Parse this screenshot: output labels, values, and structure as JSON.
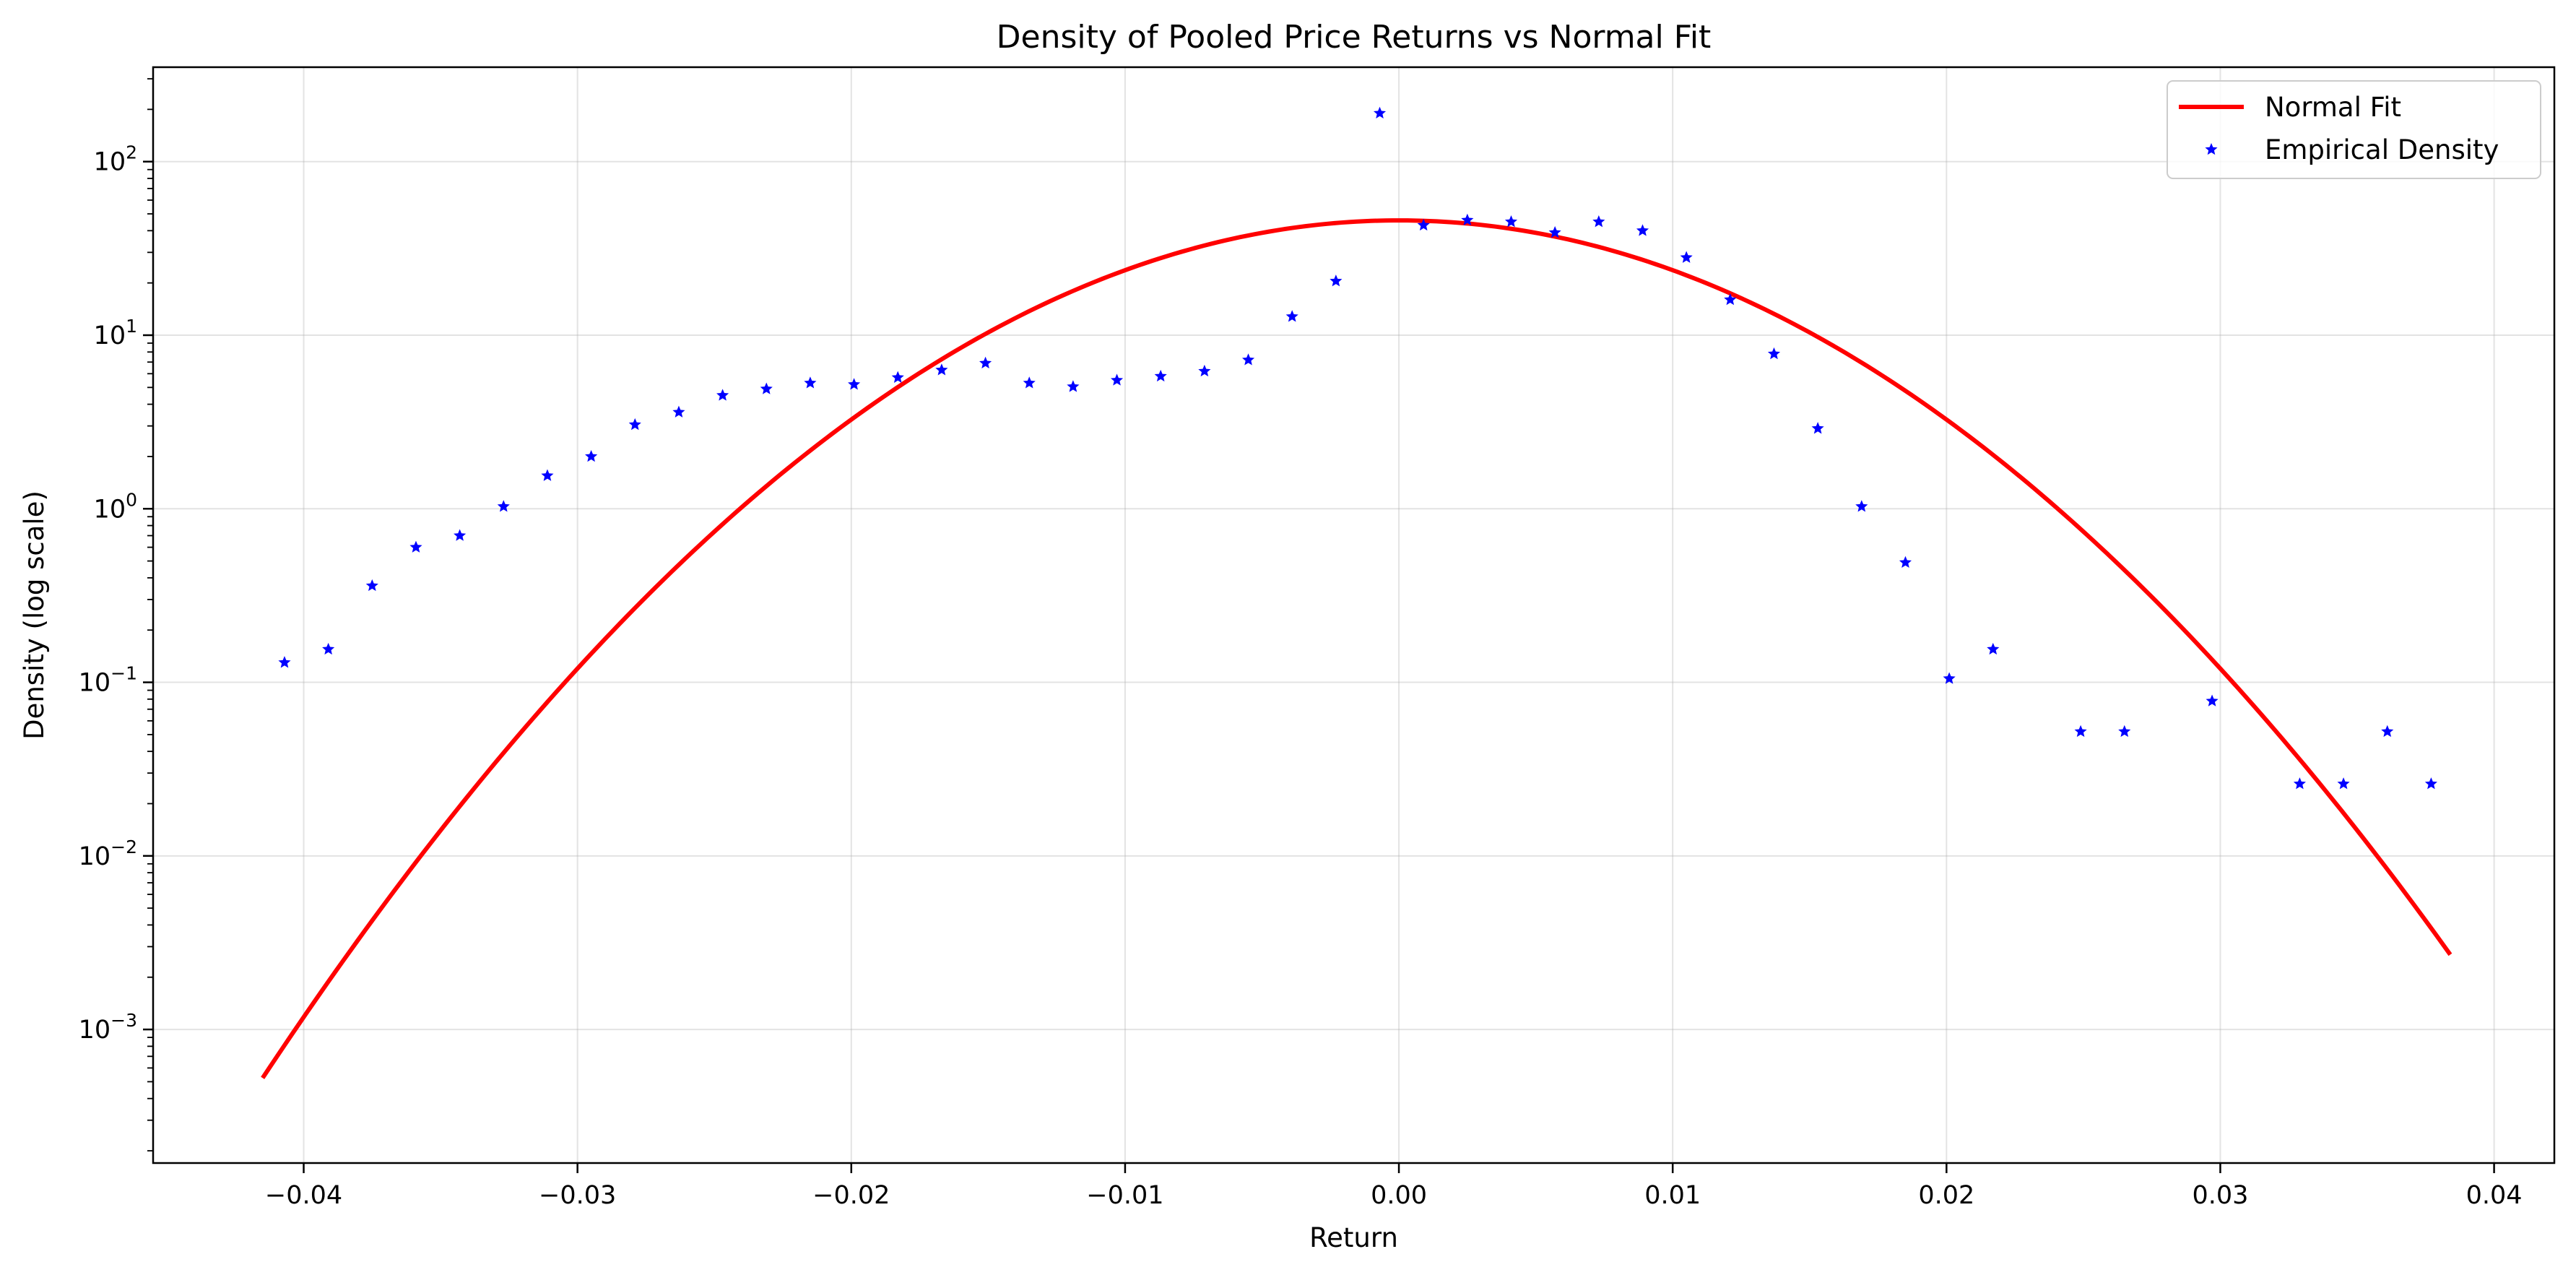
{
  "chart_data": {
    "type": "scatter",
    "title": "Density of Pooled Price Returns vs Normal Fit",
    "xlabel": "Return",
    "ylabel": "Density (log scale)",
    "xlim": [
      -0.0455,
      0.0422
    ],
    "ylim": [
      0.00017,
      350
    ],
    "yscale": "log",
    "grid": true,
    "legend_position": "top-right",
    "x_ticks": [
      {
        "value": -0.04,
        "label": "−0.04"
      },
      {
        "value": -0.03,
        "label": "−0.03"
      },
      {
        "value": -0.02,
        "label": "−0.02"
      },
      {
        "value": -0.01,
        "label": "−0.01"
      },
      {
        "value": 0.0,
        "label": "0.00"
      },
      {
        "value": 0.01,
        "label": "0.01"
      },
      {
        "value": 0.02,
        "label": "0.02"
      },
      {
        "value": 0.03,
        "label": "0.03"
      },
      {
        "value": 0.04,
        "label": "0.04"
      }
    ],
    "y_ticks": [
      {
        "value": 0.001,
        "base": "10",
        "exp": "−3"
      },
      {
        "value": 0.01,
        "base": "10",
        "exp": "−2"
      },
      {
        "value": 0.1,
        "base": "10",
        "exp": "−1"
      },
      {
        "value": 1,
        "base": "10",
        "exp": "0"
      },
      {
        "value": 10,
        "base": "10",
        "exp": "1"
      },
      {
        "value": 100,
        "base": "10",
        "exp": "2"
      }
    ],
    "series": [
      {
        "name": "Normal Fit",
        "kind": "line",
        "color": "#ff0000",
        "mean": 0.0,
        "std": 0.0087,
        "x_range": [
          -0.0415,
          0.0384
        ]
      },
      {
        "name": "Empirical Density",
        "kind": "scatter",
        "color": "#0000ff",
        "marker": "star",
        "points": [
          [
            -0.0407,
            0.13
          ],
          [
            -0.0391,
            0.155
          ],
          [
            -0.0375,
            0.36
          ],
          [
            -0.0359,
            0.6
          ],
          [
            -0.0343,
            0.7
          ],
          [
            -0.0327,
            1.03
          ],
          [
            -0.0311,
            1.55
          ],
          [
            -0.0295,
            2.0
          ],
          [
            -0.0279,
            3.05
          ],
          [
            -0.0263,
            3.6
          ],
          [
            -0.0247,
            4.5
          ],
          [
            -0.0231,
            4.9
          ],
          [
            -0.0215,
            5.3
          ],
          [
            -0.0199,
            5.2
          ],
          [
            -0.0183,
            5.7
          ],
          [
            -0.0167,
            6.3
          ],
          [
            -0.0151,
            6.9
          ],
          [
            -0.0135,
            5.3
          ],
          [
            -0.0119,
            5.05
          ],
          [
            -0.0103,
            5.5
          ],
          [
            -0.0087,
            5.8
          ],
          [
            -0.0071,
            6.2
          ],
          [
            -0.0055,
            7.2
          ],
          [
            -0.0039,
            12.8
          ],
          [
            -0.0023,
            20.5
          ],
          [
            -0.0007,
            190
          ],
          [
            0.0009,
            43
          ],
          [
            0.0025,
            46
          ],
          [
            0.0041,
            45
          ],
          [
            0.0057,
            39
          ],
          [
            0.0073,
            45
          ],
          [
            0.0089,
            40
          ],
          [
            0.0105,
            28
          ],
          [
            0.0121,
            16
          ],
          [
            0.0137,
            7.8
          ],
          [
            0.0153,
            2.9
          ],
          [
            0.0169,
            1.03
          ],
          [
            0.0185,
            0.49
          ],
          [
            0.0201,
            0.105
          ],
          [
            0.0217,
            0.155
          ],
          [
            0.0249,
            0.052
          ],
          [
            0.0265,
            0.052
          ],
          [
            0.0297,
            0.078
          ],
          [
            0.0329,
            0.026
          ],
          [
            0.0345,
            0.026
          ],
          [
            0.0361,
            0.052
          ],
          [
            0.0377,
            0.026
          ]
        ]
      }
    ]
  }
}
